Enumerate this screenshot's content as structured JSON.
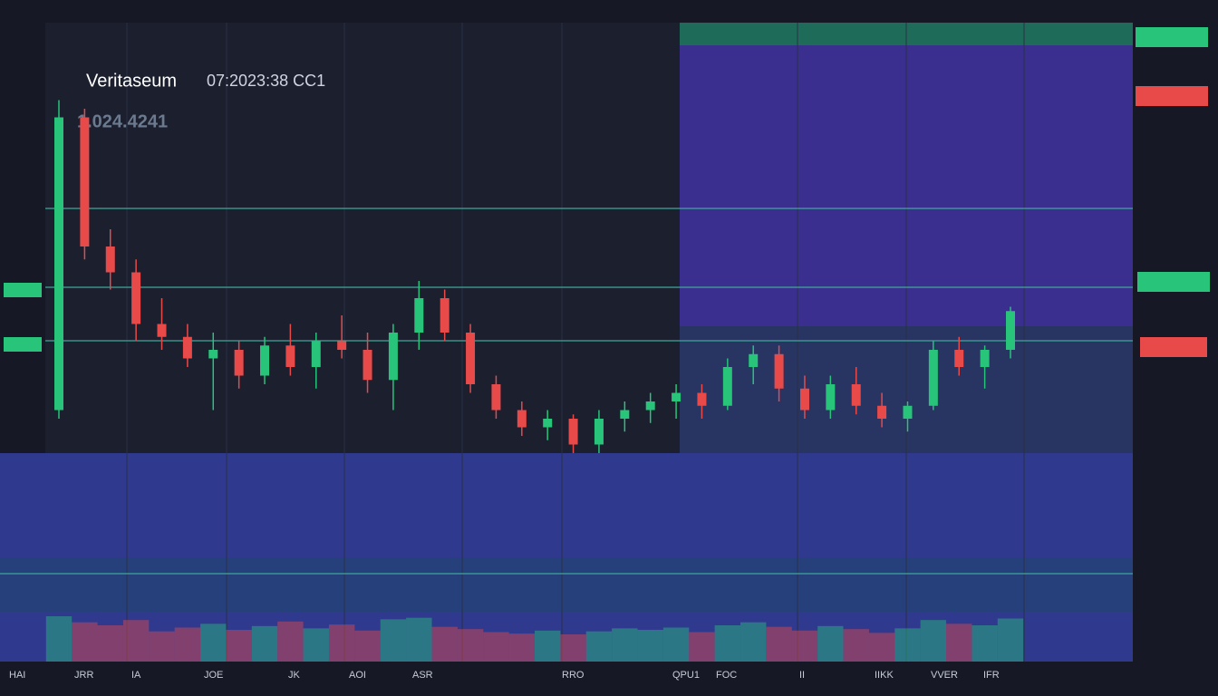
{
  "chart_data": {
    "type": "candlestick",
    "title": "Veritaseum",
    "subtitle": "07:2023:38 CC1",
    "price_label": "1.024.4241",
    "x_labels": [
      "HAI",
      "JRR",
      "IA",
      "JOE",
      "JK",
      "AOI",
      "ASR",
      "RRO",
      "QPU1",
      "FOC",
      "II",
      "IIKK",
      "VVER",
      "IFR"
    ],
    "up_color": "#27c47a",
    "down_color": "#e84a4a",
    "ylim": [
      0,
      100
    ],
    "open": [
      10,
      78,
      48,
      42,
      30,
      27,
      22,
      24,
      18,
      25,
      20,
      26,
      24,
      17,
      28,
      36,
      28,
      16,
      10,
      6,
      8,
      2,
      8,
      10,
      12,
      14,
      11,
      20,
      23,
      15,
      10,
      16,
      11,
      8,
      11,
      24,
      20,
      24
    ],
    "high": [
      82,
      80,
      52,
      45,
      36,
      30,
      28,
      26,
      27,
      30,
      28,
      32,
      28,
      30,
      40,
      38,
      30,
      18,
      12,
      10,
      9,
      10,
      12,
      14,
      16,
      16,
      22,
      25,
      25,
      18,
      18,
      20,
      14,
      12,
      26,
      27,
      25,
      34
    ],
    "low": [
      8,
      45,
      38,
      26,
      24,
      20,
      10,
      15,
      16,
      18,
      15,
      22,
      14,
      10,
      24,
      26,
      14,
      8,
      4,
      3,
      0,
      0,
      5,
      7,
      8,
      8,
      10,
      16,
      12,
      8,
      8,
      9,
      6,
      5,
      10,
      18,
      15,
      22
    ],
    "close": [
      78,
      48,
      42,
      30,
      27,
      22,
      24,
      18,
      25,
      20,
      26,
      24,
      17,
      28,
      36,
      28,
      16,
      10,
      6,
      8,
      2,
      8,
      10,
      12,
      14,
      11,
      20,
      23,
      15,
      10,
      16,
      11,
      8,
      11,
      24,
      20,
      24,
      33
    ],
    "volume": [
      60,
      52,
      48,
      55,
      40,
      45,
      50,
      42,
      47,
      53,
      44,
      49,
      41,
      56,
      58,
      46,
      43,
      39,
      37,
      41,
      36,
      40,
      44,
      42,
      45,
      39,
      48,
      52,
      46,
      41,
      47,
      43,
      38,
      44,
      55,
      50,
      48,
      57
    ]
  }
}
